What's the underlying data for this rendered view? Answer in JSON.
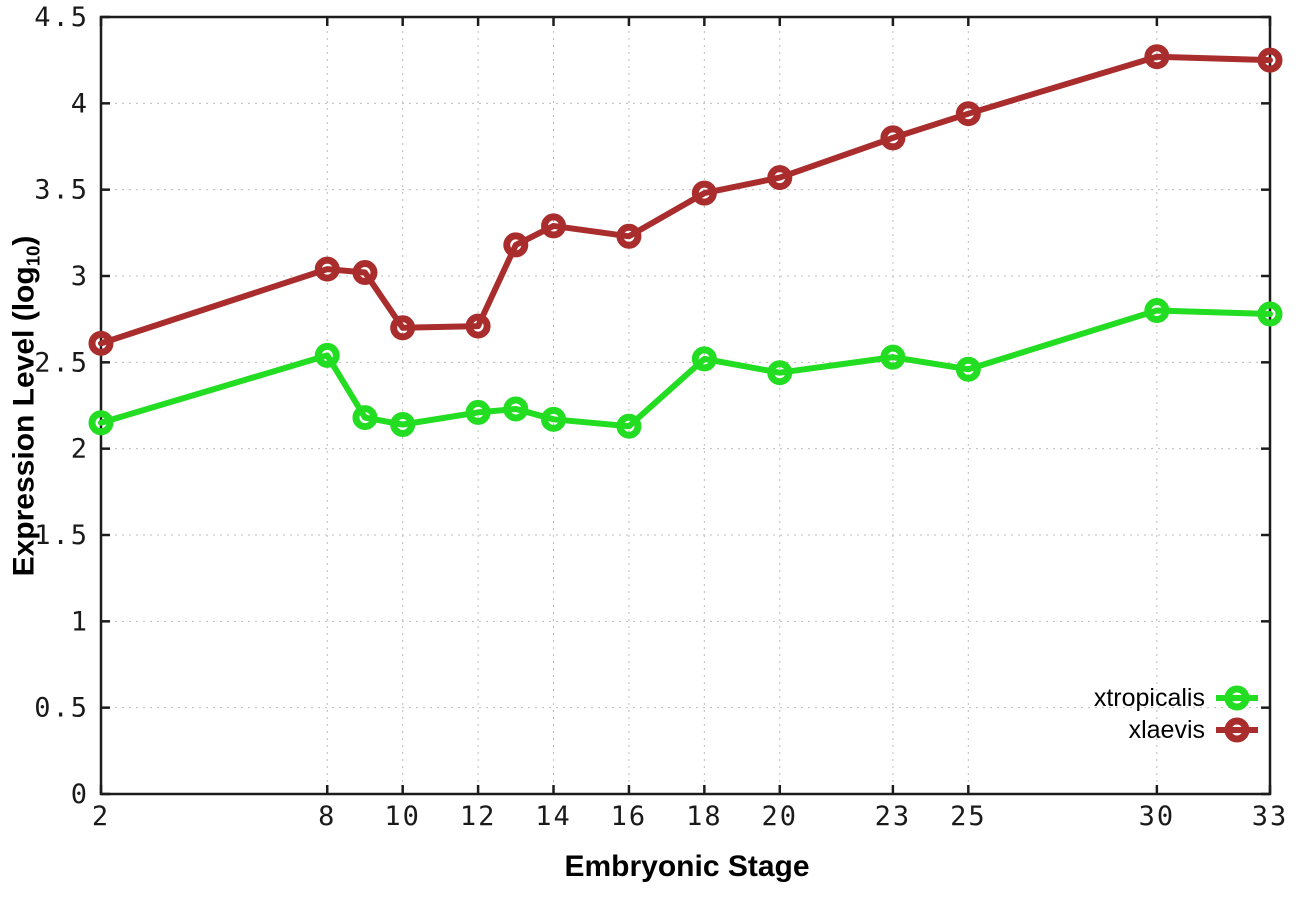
{
  "chart": {
    "background_color": "#ffffff",
    "axis_color": "#1c1c1c",
    "grid_color": "#bcbcbc",
    "ylabel_parts": {
      "prefix": "Expression Level (log",
      "sub": "10",
      "suffix": ")"
    }
  },
  "chart_data": {
    "type": "line",
    "title": "",
    "xlabel": "Embryonic Stage",
    "ylabel": "Expression Level (log10)",
    "xlim": [
      2,
      33
    ],
    "ylim": [
      0,
      4.5
    ],
    "x_ticks": [
      2,
      8,
      10,
      12,
      14,
      16,
      18,
      20,
      23,
      25,
      30,
      33
    ],
    "y_ticks": [
      0,
      0.5,
      1,
      1.5,
      2,
      2.5,
      3,
      3.5,
      4,
      4.5
    ],
    "grid": true,
    "grid_style": "dotted",
    "legend_position": "bottom-right",
    "marker": "open-circle",
    "x": [
      2,
      8,
      9,
      10,
      12,
      13,
      14,
      16,
      18,
      20,
      23,
      25,
      30,
      33
    ],
    "series": [
      {
        "name": "xtropicalis",
        "color": "#22dd22",
        "values": [
          2.15,
          2.54,
          2.18,
          2.14,
          2.21,
          2.23,
          2.17,
          2.13,
          2.52,
          2.44,
          2.53,
          2.46,
          2.8,
          2.78
        ]
      },
      {
        "name": "xlaevis",
        "color": "#aa2d2d",
        "values": [
          2.61,
          3.04,
          3.02,
          2.7,
          2.71,
          3.18,
          3.29,
          3.23,
          3.48,
          3.57,
          3.8,
          3.94,
          4.27,
          4.25
        ]
      }
    ]
  }
}
